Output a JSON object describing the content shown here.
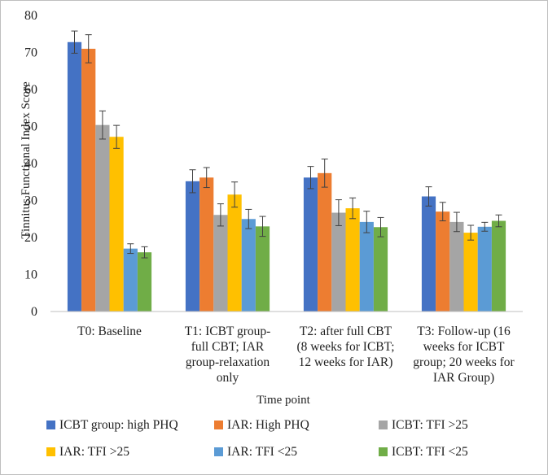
{
  "chart_data": {
    "type": "bar",
    "title": "",
    "xlabel": "Time point",
    "ylabel": "Tinnitus  Functional  Index  Score",
    "ylim": [
      0,
      80
    ],
    "yticks": [
      0,
      10,
      20,
      30,
      40,
      50,
      60,
      70,
      80
    ],
    "grid": false,
    "legend_position": "bottom",
    "categories": [
      [
        "T0: Baseline"
      ],
      [
        "T1: ICBT group-",
        "full CBT; IAR",
        "group-relaxation",
        "only"
      ],
      [
        "T2: after full CBT",
        "(8 weeks for ICBT;",
        "12 weeks for IAR)"
      ],
      [
        "T3: Follow-up (16",
        "weeks for ICBT",
        "group; 20 weeks for",
        "IAR Group)"
      ]
    ],
    "series": [
      {
        "name": "ICBT group: high PHQ",
        "color": "#4472c4",
        "values": [
          72.8,
          35.2,
          36.2,
          31.1
        ],
        "errors": [
          3.0,
          3.1,
          3.0,
          2.6
        ]
      },
      {
        "name": "IAR: High PHQ",
        "color": "#ed7d31",
        "values": [
          71.0,
          36.2,
          37.4,
          27.0
        ],
        "errors": [
          3.8,
          2.7,
          3.8,
          2.5
        ]
      },
      {
        "name": "ICBT: TFI >25",
        "color": "#a5a5a5",
        "values": [
          50.4,
          26.1,
          26.7,
          24.2
        ],
        "errors": [
          3.8,
          3.0,
          3.5,
          2.6
        ]
      },
      {
        "name": "IAR: TFI >25",
        "color": "#ffc000",
        "values": [
          47.2,
          31.6,
          27.9,
          21.3
        ],
        "errors": [
          3.1,
          3.4,
          2.8,
          2.0
        ]
      },
      {
        "name": "IAR: TFI <25",
        "color": "#5b9bd5",
        "values": [
          17.0,
          25.0,
          24.2,
          22.9
        ],
        "errors": [
          1.3,
          2.6,
          2.9,
          1.2
        ]
      },
      {
        "name": "ICBT: TFI <25",
        "color": "#70ad47",
        "values": [
          16.0,
          23.0,
          22.8,
          24.5
        ],
        "errors": [
          1.5,
          2.7,
          2.6,
          1.6
        ]
      }
    ]
  }
}
